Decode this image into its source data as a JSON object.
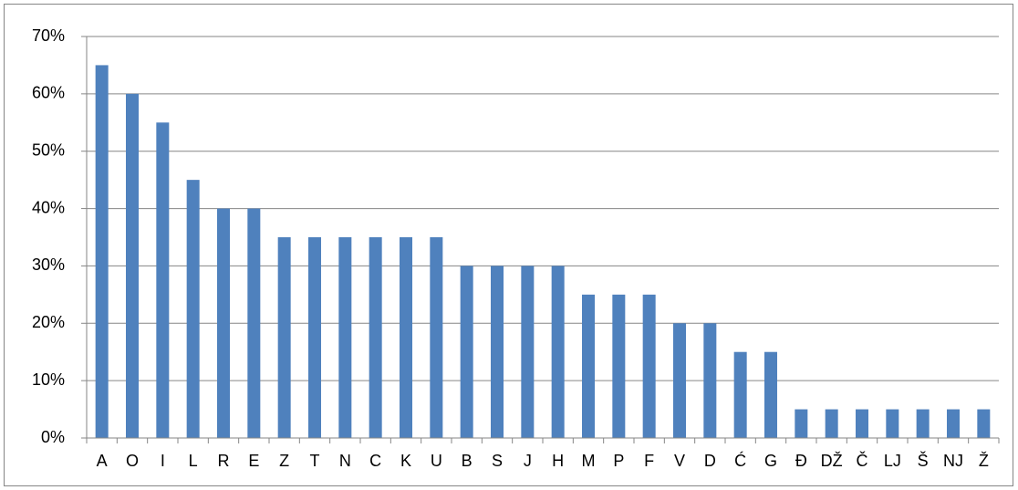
{
  "chart_data": {
    "type": "bar",
    "categories": [
      "A",
      "O",
      "I",
      "L",
      "R",
      "E",
      "Z",
      "T",
      "N",
      "C",
      "K",
      "U",
      "B",
      "S",
      "J",
      "H",
      "M",
      "P",
      "F",
      "V",
      "D",
      "Ć",
      "G",
      "Đ",
      "DŽ",
      "Č",
      "LJ",
      "Š",
      "NJ",
      "Ž"
    ],
    "values": [
      65,
      60,
      55,
      45,
      40,
      40,
      35,
      35,
      35,
      35,
      35,
      35,
      30,
      30,
      30,
      30,
      25,
      25,
      25,
      20,
      20,
      15,
      15,
      5,
      5,
      5,
      5,
      5,
      5,
      5
    ],
    "color": "#4f81bd",
    "ylim": [
      0,
      70
    ],
    "yticks": [
      {
        "value": 0,
        "label": "0%"
      },
      {
        "value": 10,
        "label": "10%"
      },
      {
        "value": 20,
        "label": "20%"
      },
      {
        "value": 30,
        "label": "30%"
      },
      {
        "value": 40,
        "label": "40%"
      },
      {
        "value": 50,
        "label": "50%"
      },
      {
        "value": 60,
        "label": "60%"
      },
      {
        "value": 70,
        "label": "70%"
      }
    ],
    "grid": true
  }
}
